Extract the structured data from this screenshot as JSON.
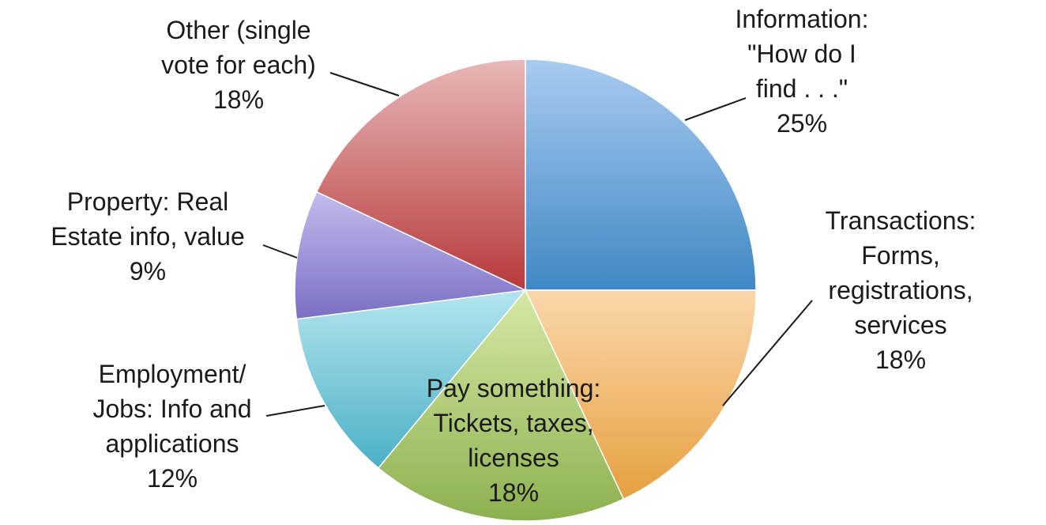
{
  "chart_data": {
    "type": "pie",
    "title": "",
    "start_angle_deg": 0,
    "direction": "clockwise",
    "slices": [
      {
        "label_lines": [
          "Information:",
          "\"How do I",
          "find . . .\""
        ],
        "value_label": "25%",
        "value": 25,
        "color": "#3f88c5",
        "color_light": "#a9cbf0"
      },
      {
        "label_lines": [
          "Transactions:",
          "Forms,",
          "registrations,",
          "services"
        ],
        "value_label": "18%",
        "value": 18,
        "color": "#e6a03e",
        "color_light": "#fbd7ab"
      },
      {
        "label_lines": [
          "Pay something:",
          "Tickets, taxes,",
          "licenses"
        ],
        "value_label": "18%",
        "value": 18,
        "color": "#8db04f",
        "color_light": "#d6e9a6"
      },
      {
        "label_lines": [
          "Employment/",
          "Jobs: Info and",
          "applications"
        ],
        "value_label": "12%",
        "value": 12,
        "color": "#4bb0c6",
        "color_light": "#b4e5ef"
      },
      {
        "label_lines": [
          "Property: Real",
          "Estate info, value"
        ],
        "value_label": "9%",
        "value": 9,
        "color": "#7b6ec6",
        "color_light": "#c3bcec"
      },
      {
        "label_lines": [
          "Other (single",
          "vote for each)"
        ],
        "value_label": "18%",
        "value": 18,
        "color": "#b8393b",
        "color_light": "#e8b8b8"
      }
    ]
  }
}
